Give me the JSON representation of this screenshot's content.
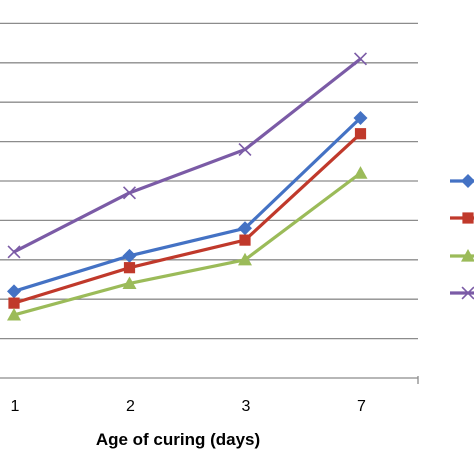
{
  "chart_data": {
    "type": "line",
    "title": "",
    "xlabel": "Age of curing (days)",
    "ylabel": "",
    "categories": [
      "1",
      "2",
      "3",
      "7"
    ],
    "ylim": [
      0,
      10
    ],
    "ytick_step": 1,
    "grid": true,
    "legend_position": "right",
    "series": [
      {
        "values": [
          2.2,
          3.1,
          3.8,
          6.6
        ],
        "color": "#4472C4",
        "marker": "diamond"
      },
      {
        "values": [
          1.9,
          2.8,
          3.5,
          6.2
        ],
        "color": "#C0392B",
        "marker": "square"
      },
      {
        "values": [
          1.6,
          2.4,
          3.0,
          5.2
        ],
        "color": "#9BBB59",
        "marker": "triangle"
      },
      {
        "values": [
          3.2,
          4.7,
          5.8,
          8.1
        ],
        "color": "#7B5BA6",
        "marker": "x"
      }
    ]
  }
}
